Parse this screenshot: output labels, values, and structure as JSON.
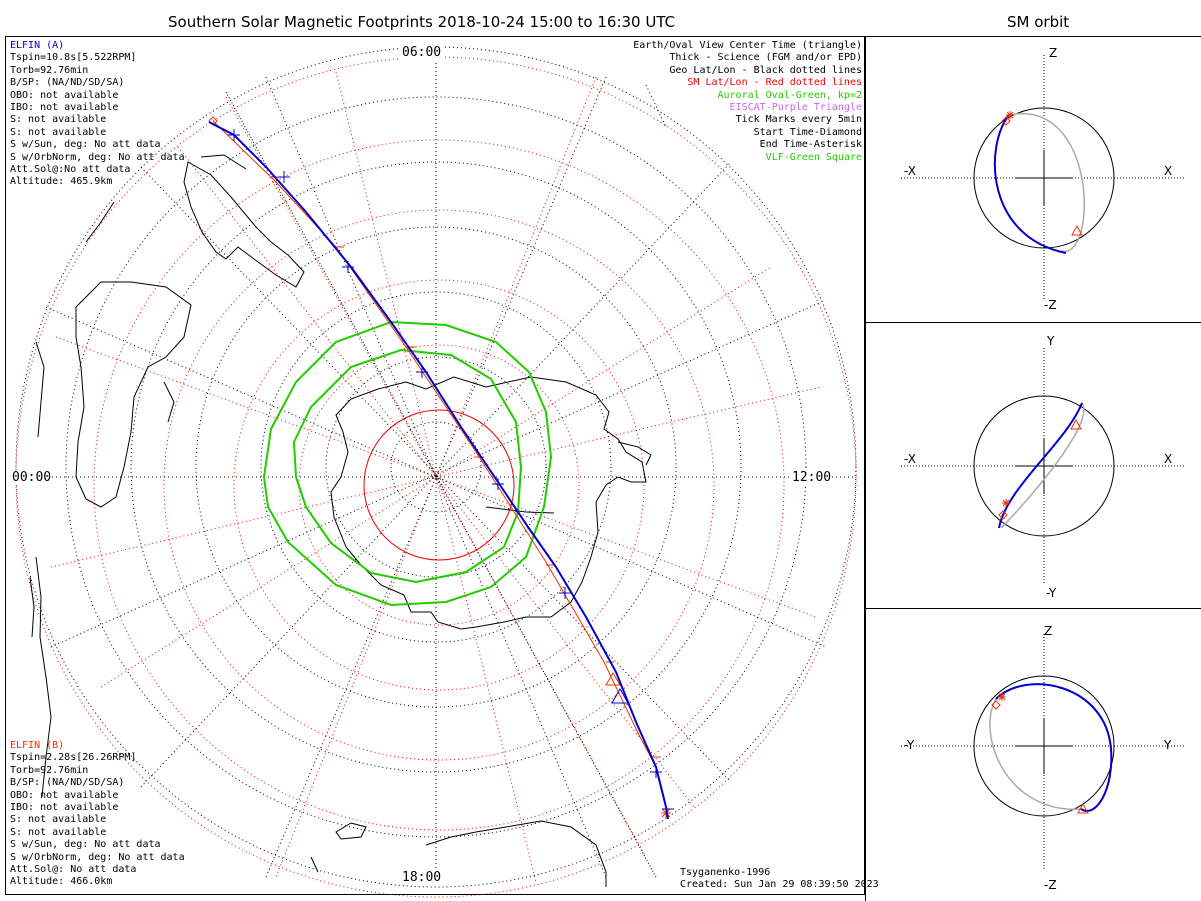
{
  "title": "Southern Solar Magnetic Footprints 2018-10-24 15:00 to 16:30 UTC",
  "orbit_title": "SM orbit",
  "elfin_a": {
    "lines": [
      "ELFIN (A)",
      "Tspin=10.8s[5.522RPM]",
      "Torb=92.76min",
      "B/SP: (NA/ND/SD/SA)",
      "OBO: not available",
      "IBO: not available",
      "S: not available",
      "S: not available",
      "S w/Sun, deg: No att data",
      "S w/OrbNorm, deg: No att data",
      "Att.Sol@:No att data",
      "Altitude: 465.9km"
    ],
    "color": "#0000cc"
  },
  "elfin_b": {
    "lines": [
      "ELFIN (B)",
      "Tspin=2.28s[26.26RPM]",
      "Torb=92.76min",
      "B/SP: (NA/ND/SD/SA)",
      "OBO: not available",
      "IBO: not available",
      "S: not available",
      "S: not available",
      "S w/Sun, deg: No att data",
      "S w/OrbNorm, deg: No att data",
      "Att.Sol@: No att data",
      "Altitude: 466.0km"
    ],
    "color": "#ee3300"
  },
  "legend": [
    {
      "text": "Earth/Oval View Center Time (triangle)",
      "color": "#000000"
    },
    {
      "text": "Thick - Science (FGM and/or EPD)",
      "color": "#000000"
    },
    {
      "text": "Geo Lat/Lon - Black dotted lines",
      "color": "#000000"
    },
    {
      "text": "SM Lat/Lon - Red dotted lines",
      "color": "#ee0000"
    },
    {
      "text": "Auroral Oval-Green, kp=2",
      "color": "#22cc00"
    },
    {
      "text": "EISCAT-Purple Triangle",
      "color": "#cc66ee"
    },
    {
      "text": "Tick Marks every 5min",
      "color": "#000000"
    },
    {
      "text": "Start Time-Diamond",
      "color": "#000000"
    },
    {
      "text": "End Time-Asterisk",
      "color": "#000000"
    },
    {
      "text": "VLF-Green Square",
      "color": "#22cc00"
    }
  ],
  "mlt_labels": {
    "top": "06:00",
    "bottom": "18:00",
    "left": "00:00",
    "right": "12:00"
  },
  "credits": [
    "Tsyganenko-1996",
    "Created: Sun Jan 29 08:39:50 2023"
  ],
  "orbit_panels": [
    {
      "top": "Z",
      "bottom": "-Z",
      "left": "-X",
      "right": "X"
    },
    {
      "top": "Y",
      "bottom": "-Y",
      "left": "-X",
      "right": "X"
    },
    {
      "top": "Z",
      "bottom": "-Z",
      "left": "-Y",
      "right": "Y"
    }
  ],
  "colors": {
    "elfin_a": "#0000cc",
    "elfin_b": "#ee3300",
    "oval": "#22cc00",
    "sm_grid": "#ee0000",
    "geo_grid": "#000000",
    "orbit_back": "#aaaaaa"
  }
}
